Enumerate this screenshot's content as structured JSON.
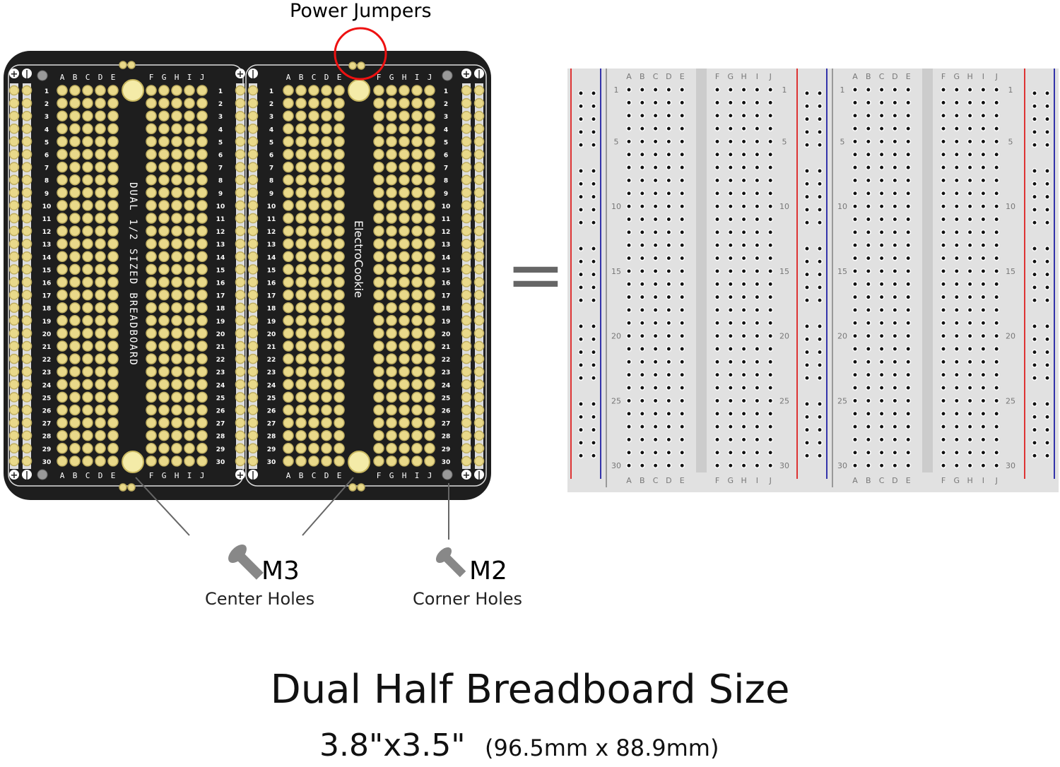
{
  "callouts": {
    "power_jumpers": "Power Jumpers",
    "m3": "M3",
    "m3_sub": "Center Holes",
    "m2": "M2",
    "m2_sub": "Corner Holes",
    "equals": "="
  },
  "pcb": {
    "vertical_text_left": "DUAL 1/2 SIZED BREADBOARD",
    "vertical_text_right": "ElectroCookie",
    "columns_left": [
      "A",
      "B",
      "C",
      "D",
      "E"
    ],
    "columns_right": [
      "F",
      "G",
      "H",
      "I",
      "J"
    ],
    "rows": 30,
    "pad_color": "#e9d98a",
    "board_color": "#1e1e1e"
  },
  "breadboard": {
    "columns_left": [
      "A",
      "B",
      "C",
      "D",
      "E"
    ],
    "columns_right": [
      "F",
      "G",
      "H",
      "I",
      "J"
    ],
    "row_labels": [
      "1",
      "5",
      "10",
      "15",
      "20",
      "25",
      "30"
    ],
    "rows": 30,
    "rail_red": "#d33",
    "rail_blue": "#33a"
  },
  "footer": {
    "title": "Dual Half Breadboard Size",
    "size_in": "3.8\"x3.5\"",
    "size_mm": "(96.5mm x 88.9mm)"
  }
}
